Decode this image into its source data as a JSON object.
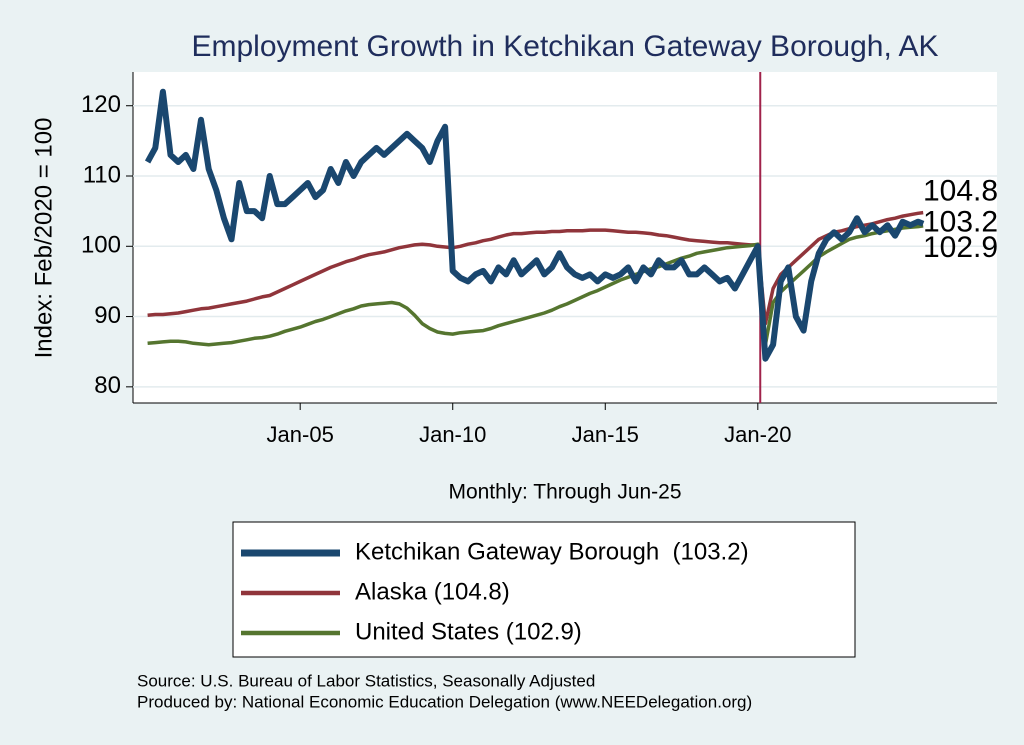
{
  "chart_data": {
    "type": "line",
    "title": "Employment Growth in Ketchikan Gateway Borough, AK",
    "y_label": "Index: Feb/2020 = 100",
    "x_label": "Monthly: Through Jun-25",
    "source": "Source: U.S. Bureau of Labor Statistics, Seasonally Adjusted",
    "produced_by": "Produced by: National Economic Education Delegation (www.NEEDelegation.org)",
    "xlim": [
      1999.52,
      2027.84
    ],
    "xticks": [
      {
        "value": 2005,
        "label": "Jan-05"
      },
      {
        "value": 2010,
        "label": "Jan-10"
      },
      {
        "value": 2015,
        "label": "Jan-15"
      },
      {
        "value": 2020,
        "label": "Jan-20"
      }
    ],
    "ylim": [
      77.7,
      124.8
    ],
    "yticks": [
      80,
      90,
      100,
      110,
      120
    ],
    "grid": true,
    "reference_line": {
      "x": 2020.08,
      "color": "#a0224a"
    },
    "x": [
      2000,
      2000.25,
      2000.5,
      2000.75,
      2001,
      2001.25,
      2001.5,
      2001.75,
      2002,
      2002.25,
      2002.5,
      2002.75,
      2003,
      2003.25,
      2003.5,
      2003.75,
      2004,
      2004.25,
      2004.5,
      2004.75,
      2005,
      2005.25,
      2005.5,
      2005.75,
      2006,
      2006.25,
      2006.5,
      2006.75,
      2007,
      2007.25,
      2007.5,
      2007.75,
      2008,
      2008.25,
      2008.5,
      2008.75,
      2009,
      2009.25,
      2009.5,
      2009.75,
      2010,
      2010.25,
      2010.5,
      2010.75,
      2011,
      2011.25,
      2011.5,
      2011.75,
      2012,
      2012.25,
      2012.5,
      2012.75,
      2013,
      2013.25,
      2013.5,
      2013.75,
      2014,
      2014.25,
      2014.5,
      2014.75,
      2015,
      2015.25,
      2015.5,
      2015.75,
      2016,
      2016.25,
      2016.5,
      2016.75,
      2017,
      2017.25,
      2017.5,
      2017.75,
      2018,
      2018.25,
      2018.5,
      2018.75,
      2019,
      2019.25,
      2019.5,
      2019.75,
      2020,
      2020.25,
      2020.5,
      2020.75,
      2021,
      2021.25,
      2021.5,
      2021.75,
      2022,
      2022.25,
      2022.5,
      2022.75,
      2023,
      2023.25,
      2023.5,
      2023.75,
      2024,
      2024.25,
      2024.5,
      2024.75,
      2025,
      2025.25,
      2025.42
    ],
    "series": [
      {
        "name": "Ketchikan Gateway Borough  (103.2)",
        "color": "#1a476f",
        "width": 6,
        "values": [
          112,
          114,
          122,
          113,
          112,
          113,
          111,
          118,
          111,
          108,
          104,
          101,
          109,
          105,
          105,
          104,
          110,
          106,
          106,
          107,
          108,
          109,
          107,
          108,
          111,
          109,
          112,
          110,
          112,
          113,
          114,
          113,
          114,
          115,
          116,
          115,
          114,
          112,
          115,
          117,
          96.5,
          95.5,
          95,
          96,
          96.5,
          95,
          97,
          96,
          98,
          96,
          97,
          98,
          96,
          97,
          99,
          97,
          96,
          95.5,
          96,
          95,
          96,
          95.5,
          96,
          97,
          95,
          97,
          96,
          98,
          97,
          97,
          98,
          96,
          96,
          97,
          96,
          95,
          95.5,
          94,
          96,
          98,
          100,
          84,
          86,
          95,
          97,
          90,
          88,
          95,
          99,
          101,
          102,
          101,
          102,
          104,
          102,
          103,
          102,
          103,
          101.5,
          103.5,
          103,
          103.5,
          103.2
        ]
      },
      {
        "name": "Alaska (104.8)",
        "color": "#90353b",
        "width": 3.5,
        "values": [
          90.2,
          90.3,
          90.3,
          90.4,
          90.5,
          90.7,
          90.9,
          91.1,
          91.2,
          91.4,
          91.6,
          91.8,
          92,
          92.2,
          92.5,
          92.8,
          93,
          93.5,
          94,
          94.5,
          95,
          95.5,
          96,
          96.5,
          97,
          97.4,
          97.8,
          98.1,
          98.5,
          98.8,
          99,
          99.2,
          99.5,
          99.8,
          100,
          100.2,
          100.3,
          100.2,
          100,
          99.9,
          99.8,
          100,
          100.3,
          100.5,
          100.8,
          101,
          101.3,
          101.6,
          101.8,
          101.8,
          101.9,
          102,
          102,
          102.1,
          102.1,
          102.2,
          102.2,
          102.2,
          102.3,
          102.3,
          102.3,
          102.2,
          102.1,
          102,
          102,
          101.9,
          101.8,
          101.6,
          101.5,
          101.3,
          101.1,
          100.9,
          100.8,
          100.7,
          100.6,
          100.5,
          100.5,
          100.4,
          100.3,
          100.2,
          100.2,
          89,
          94,
          96,
          97,
          98,
          99,
          100,
          101,
          101.5,
          102,
          102.2,
          102.5,
          102.8,
          103,
          103.2,
          103.5,
          103.8,
          104,
          104.3,
          104.5,
          104.7,
          104.8
        ]
      },
      {
        "name": "United States (102.9)",
        "color": "#55752f",
        "width": 3.5,
        "values": [
          86.2,
          86.3,
          86.4,
          86.5,
          86.5,
          86.4,
          86.2,
          86.1,
          86,
          86.1,
          86.2,
          86.3,
          86.5,
          86.7,
          86.9,
          87,
          87.2,
          87.5,
          87.9,
          88.2,
          88.5,
          88.9,
          89.3,
          89.6,
          90,
          90.4,
          90.8,
          91.1,
          91.5,
          91.7,
          91.8,
          91.9,
          92,
          91.8,
          91.2,
          90.2,
          89,
          88.3,
          87.8,
          87.6,
          87.5,
          87.7,
          87.8,
          87.9,
          88,
          88.3,
          88.7,
          89,
          89.3,
          89.6,
          89.9,
          90.2,
          90.5,
          90.9,
          91.4,
          91.8,
          92.3,
          92.8,
          93.3,
          93.7,
          94.2,
          94.7,
          95.2,
          95.6,
          96,
          96.4,
          96.8,
          97.1,
          97.5,
          97.9,
          98.3,
          98.6,
          99,
          99.2,
          99.4,
          99.6,
          99.8,
          99.9,
          100,
          100.1,
          100.3,
          86,
          92,
          93.5,
          94.5,
          95.5,
          96.5,
          97.5,
          98.5,
          99.2,
          99.8,
          100.4,
          101,
          101.3,
          101.5,
          101.8,
          102,
          102.2,
          102.4,
          102.6,
          102.7,
          102.8,
          102.9
        ]
      }
    ]
  }
}
